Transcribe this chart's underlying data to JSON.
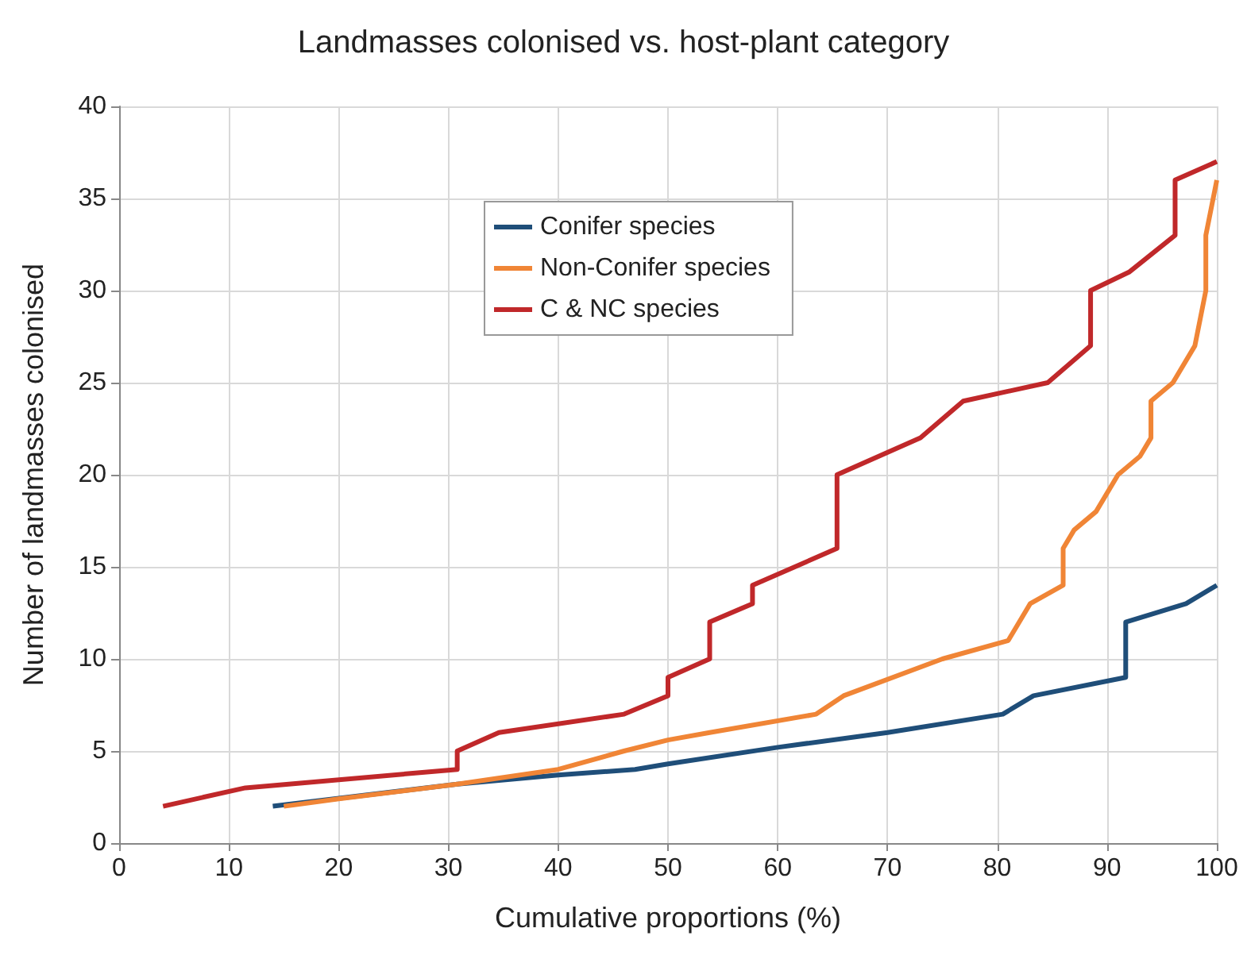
{
  "chart_data": {
    "type": "line",
    "title": "Landmasses colonised vs. host-plant category",
    "xlabel": "Cumulative proportions (%)",
    "ylabel": "Number of landmasses colonised",
    "xlim": [
      0,
      100
    ],
    "xticks": [
      0,
      10,
      20,
      30,
      40,
      50,
      60,
      70,
      80,
      90,
      100
    ],
    "ylim": [
      0,
      40
    ],
    "yticks": [
      0,
      5,
      10,
      15,
      20,
      25,
      30,
      35,
      40
    ],
    "grid": true,
    "legend": "top",
    "marker": "none",
    "line_style": "solid",
    "series": [
      {
        "name": "Conifer species",
        "color": "#1f4e79",
        "x": [
          14,
          30.8,
          40,
          47,
          50,
          60,
          70,
          80.5,
          83.3,
          91.7,
          91.7,
          97.2,
          100
        ],
        "values": [
          2,
          3.2,
          3.7,
          4,
          4.3,
          5.2,
          6,
          7,
          8,
          9,
          12,
          13,
          14
        ]
      },
      {
        "name": "Non-Conifer species",
        "color": "#f08536",
        "x": [
          15,
          20,
          30.8,
          40,
          46,
          50,
          53.8,
          63.5,
          66,
          75,
          81,
          83,
          86,
          86,
          87,
          89,
          91,
          93,
          94,
          94,
          96,
          98,
          99,
          99,
          100
        ],
        "values": [
          2,
          2.4,
          3.2,
          4,
          5,
          5.6,
          6,
          7,
          8,
          10,
          11,
          13,
          14,
          16,
          17,
          18,
          20,
          21,
          22,
          24,
          25,
          27,
          30,
          33,
          36
        ]
      },
      {
        "name": "C & NC species",
        "color": "#c0282a",
        "x": [
          4,
          11.5,
          30.8,
          30.8,
          34.6,
          46,
          50,
          50,
          53.8,
          53.8,
          57.7,
          57.7,
          65.4,
          65.4,
          73,
          76.9,
          84.6,
          88.5,
          88.5,
          92,
          96.2,
          96.2,
          100
        ],
        "values": [
          2,
          3,
          4,
          5,
          6,
          7,
          8,
          9,
          10,
          12,
          13,
          14,
          16,
          20,
          22,
          24,
          25,
          27,
          30,
          31,
          33,
          36,
          37
        ]
      }
    ]
  }
}
